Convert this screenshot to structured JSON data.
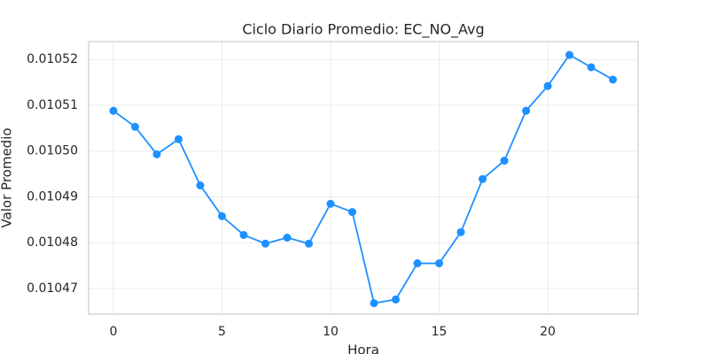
{
  "chart_data": {
    "type": "line",
    "title": "Ciclo Diario Promedio: EC_NO_Avg",
    "x_label": "Hora",
    "y_label": "Valor Promedio",
    "x": [
      0,
      1,
      2,
      3,
      4,
      5,
      6,
      7,
      8,
      9,
      10,
      11,
      12,
      13,
      14,
      15,
      16,
      17,
      18,
      19,
      20,
      21,
      22,
      23
    ],
    "series": [
      {
        "name": "EC_NO_Avg",
        "color": "#1e90ff",
        "values": [
          0.0105088,
          0.0105053,
          0.0104993,
          0.0105026,
          0.0104925,
          0.0104858,
          0.0104817,
          0.0104798,
          0.0104811,
          0.0104798,
          0.0104885,
          0.0104867,
          0.0104668,
          0.0104676,
          0.0104755,
          0.0104755,
          0.0104823,
          0.0104939,
          0.0104979,
          0.0105088,
          0.0105142,
          0.010521,
          0.0105183,
          0.0105156
        ]
      }
    ],
    "xlim": [
      -1.14,
      24.16
    ],
    "xticks": [
      0,
      5,
      10,
      15,
      20
    ],
    "ylim": [
      0.0104644,
      0.0105239
    ],
    "yticks": [
      0.01047,
      0.01048,
      0.01049,
      {
        "value": 0.0105,
        "label": "0.01050"
      },
      0.01051,
      0.01052
    ],
    "grid": true
  }
}
